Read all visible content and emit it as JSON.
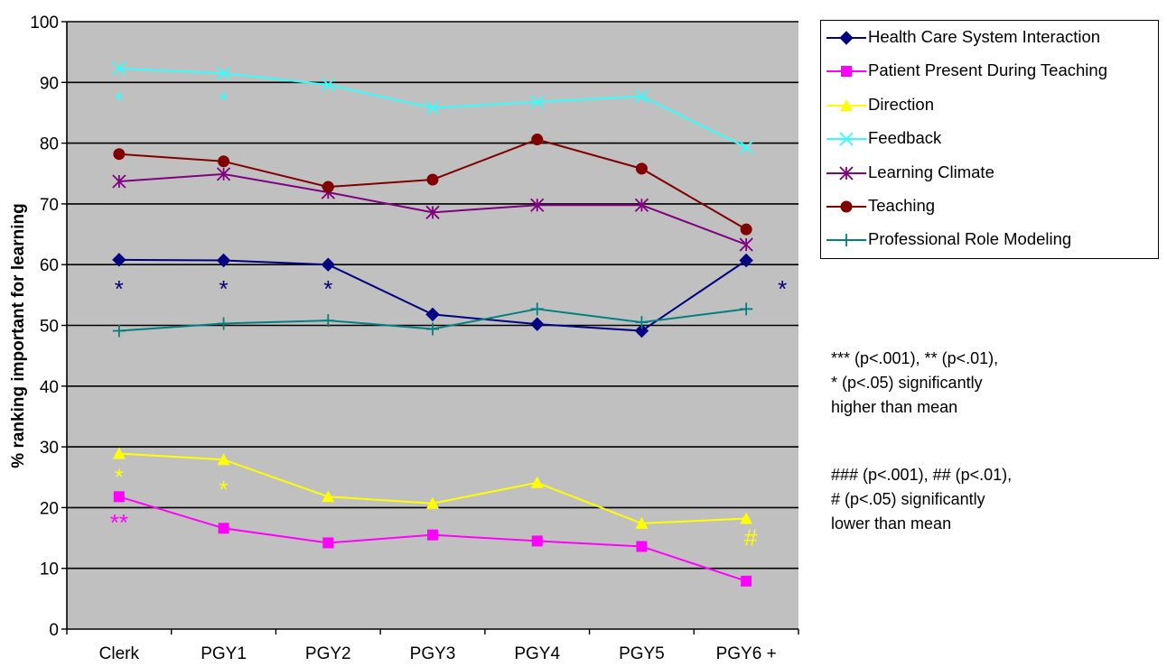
{
  "chart_data": {
    "type": "line",
    "title": "",
    "xlabel": "",
    "ylabel": "% ranking important for learning",
    "ylim": [
      0,
      100
    ],
    "yticks": [
      "0",
      "10",
      "20",
      "30",
      "40",
      "50",
      "60",
      "70",
      "80",
      "90",
      "100"
    ],
    "categories": [
      "Clerk",
      "PGY1",
      "PGY2",
      "PGY3",
      "PGY4",
      "PGY5",
      "PGY6 +"
    ],
    "grid": true,
    "legend_position": "right",
    "series": [
      {
        "name": "Health Care System Interaction",
        "color": "#000080",
        "marker": "diamond",
        "values": [
          60.8,
          60.7,
          60.0,
          51.8,
          50.2,
          49.1,
          60.7
        ]
      },
      {
        "name": "Patient Present During Teaching",
        "color": "#FF00FF",
        "marker": "square",
        "values": [
          21.8,
          16.6,
          14.2,
          15.5,
          14.5,
          13.6,
          7.9
        ]
      },
      {
        "name": "Direction",
        "color": "#FFFF00",
        "marker": "triangle",
        "values": [
          28.9,
          27.9,
          21.8,
          20.7,
          24.1,
          17.4,
          18.2
        ]
      },
      {
        "name": "Feedback",
        "color": "#33FFFF",
        "marker": "x",
        "values": [
          92.3,
          91.5,
          89.6,
          85.8,
          86.8,
          87.7,
          79.3
        ]
      },
      {
        "name": "Learning Climate",
        "color": "#800080",
        "marker": "asterisk",
        "values": [
          73.7,
          74.9,
          71.9,
          68.6,
          69.8,
          69.8,
          63.3
        ]
      },
      {
        "name": "Teaching",
        "color": "#800000",
        "marker": "circle",
        "values": [
          78.2,
          77.0,
          72.8,
          74.0,
          80.6,
          75.8,
          65.8
        ]
      },
      {
        "name": "Professional Role Modeling",
        "color": "#008080",
        "marker": "plus",
        "values": [
          49.1,
          50.3,
          50.8,
          49.4,
          52.7,
          50.5,
          52.7
        ]
      }
    ],
    "annotations": [
      {
        "text": "*",
        "color": "#33FFFF",
        "category": "Clerk",
        "y": 87.5
      },
      {
        "text": "*",
        "color": "#33FFFF",
        "category": "PGY1",
        "y": 87.5
      },
      {
        "text": "*",
        "color": "#000080",
        "category": "Clerk",
        "y": 56.5
      },
      {
        "text": "*",
        "color": "#000080",
        "category": "PGY1",
        "y": 56.5
      },
      {
        "text": "*",
        "color": "#000080",
        "category": "PGY2",
        "y": 56.5
      },
      {
        "text": "*",
        "color": "#000080",
        "category": "PGY6 +",
        "y": 56.5,
        "offset": "right"
      },
      {
        "text": "*",
        "color": "#FFFF00",
        "category": "Clerk",
        "y": 25.5
      },
      {
        "text": "*",
        "color": "#FFFF00",
        "category": "PGY1",
        "y": 23.5
      },
      {
        "text": "**",
        "color": "#FF00FF",
        "category": "Clerk",
        "y": 18.0
      },
      {
        "text": "#",
        "color": "#FFFF00",
        "category": "PGY6 +",
        "y": 15.5,
        "offset": "slight-right"
      }
    ]
  },
  "notes": {
    "higher_line1": "*** (p<.001),  ** (p<.01),",
    "higher_line2": " * (p<.05) significantly",
    "higher_line3": "higher than mean",
    "lower_line1": "### (p<.001),  ## (p<.01),",
    "lower_line2": "# (p<.05) significantly",
    "lower_line3": "lower than mean"
  }
}
